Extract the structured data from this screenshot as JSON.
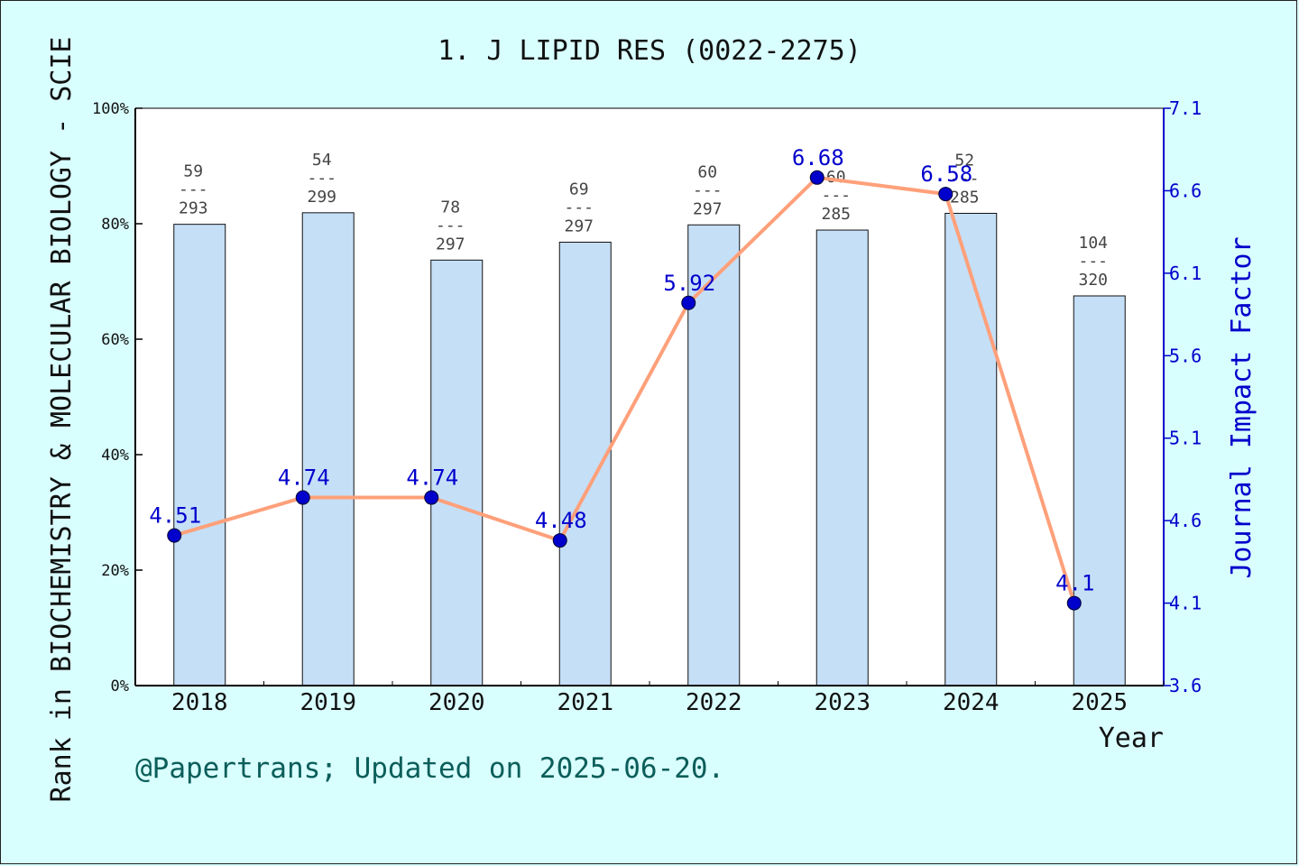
{
  "footer": "@Papertrans; Updated on 2025-06-20.",
  "colors": {
    "background": "#d9fefe",
    "bar": "#c5dff7",
    "line": "#ffa07a",
    "point": "#0000cc",
    "right_axis": "#0000cc",
    "footer": "#0b5e5a"
  },
  "chart_data": {
    "type": "bar",
    "title": "1. J LIPID RES (0022-2275)",
    "xlabel": "Year",
    "ylabel": "Rank in BIOCHEMISTRY & MOLECULAR BIOLOGY - SCIE",
    "y2label": "Journal Impact Factor",
    "categories": [
      "2018",
      "2019",
      "2020",
      "2021",
      "2022",
      "2023",
      "2024",
      "2025"
    ],
    "ylim": [
      0,
      100
    ],
    "yticks": [
      "0%",
      "20%",
      "40%",
      "60%",
      "80%",
      "100%"
    ],
    "y2lim": [
      3.6,
      7.1
    ],
    "y2ticks": [
      "3.6",
      "4.1",
      "4.6",
      "5.1",
      "5.6",
      "6.1",
      "6.6",
      "7.1"
    ],
    "grid": false,
    "series": [
      {
        "kind": "bar",
        "values": [
          79.9,
          81.9,
          73.7,
          76.8,
          79.8,
          78.9,
          81.8,
          67.5
        ],
        "labels": [
          {
            "rank": "59",
            "sep": "---",
            "total": "293"
          },
          {
            "rank": "54",
            "sep": "---",
            "total": "299"
          },
          {
            "rank": "78",
            "sep": "---",
            "total": "297"
          },
          {
            "rank": "69",
            "sep": "---",
            "total": "297"
          },
          {
            "rank": "60",
            "sep": "---",
            "total": "297"
          },
          {
            "rank": "60",
            "sep": "---",
            "total": "285"
          },
          {
            "rank": "52",
            "sep": "---",
            "total": "285"
          },
          {
            "rank": "104",
            "sep": "---",
            "total": "320"
          }
        ]
      },
      {
        "kind": "line",
        "axis": "right",
        "values": [
          4.51,
          4.74,
          4.74,
          4.48,
          5.92,
          6.68,
          6.58,
          4.1
        ],
        "labels": [
          "4.51",
          "4.74",
          "4.74",
          "4.48",
          "5.92",
          "6.68",
          "6.58",
          "4.1"
        ]
      }
    ]
  }
}
